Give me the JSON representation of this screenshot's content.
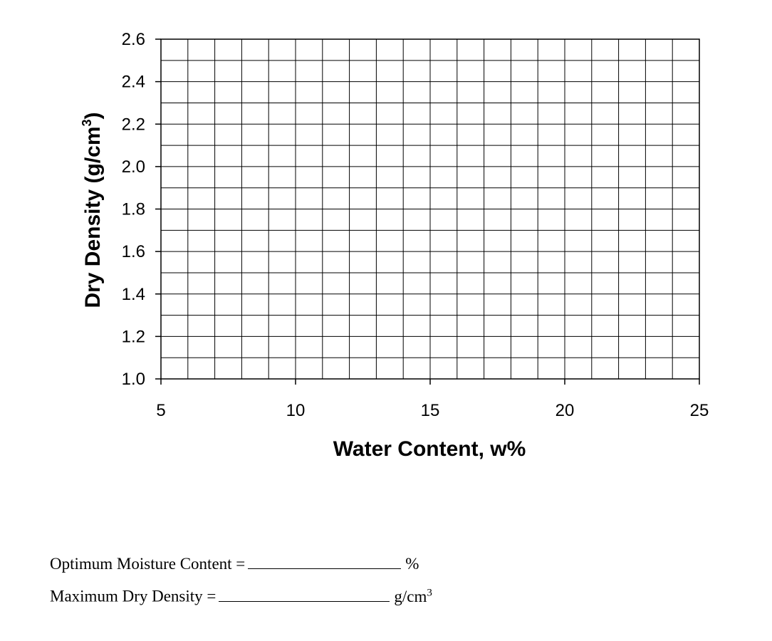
{
  "chart_data": {
    "type": "scatter",
    "title": "",
    "xlabel": "Water Content, w%",
    "ylabel": "Dry Density (g/cm",
    "ylabel_superscript": "3",
    "ylabel_suffix": ")",
    "xlim": [
      5,
      25
    ],
    "ylim": [
      1.0,
      2.6
    ],
    "x_ticks": [
      "5",
      "10",
      "15",
      "20",
      "25"
    ],
    "y_ticks": [
      "1.0",
      "1.2",
      "1.4",
      "1.6",
      "1.8",
      "2.0",
      "2.2",
      "2.4",
      "2.6"
    ],
    "x_major_step": 5,
    "x_minor_step": 1,
    "y_major_step": 0.2,
    "y_minor_step": 0.1,
    "grid": true,
    "series": []
  },
  "results": {
    "omc_label": "Optimum Moisture Content =",
    "omc_unit": "%",
    "mdd_label": "Maximum Dry Density =",
    "mdd_unit": "g/cm",
    "mdd_unit_superscript": "3"
  }
}
